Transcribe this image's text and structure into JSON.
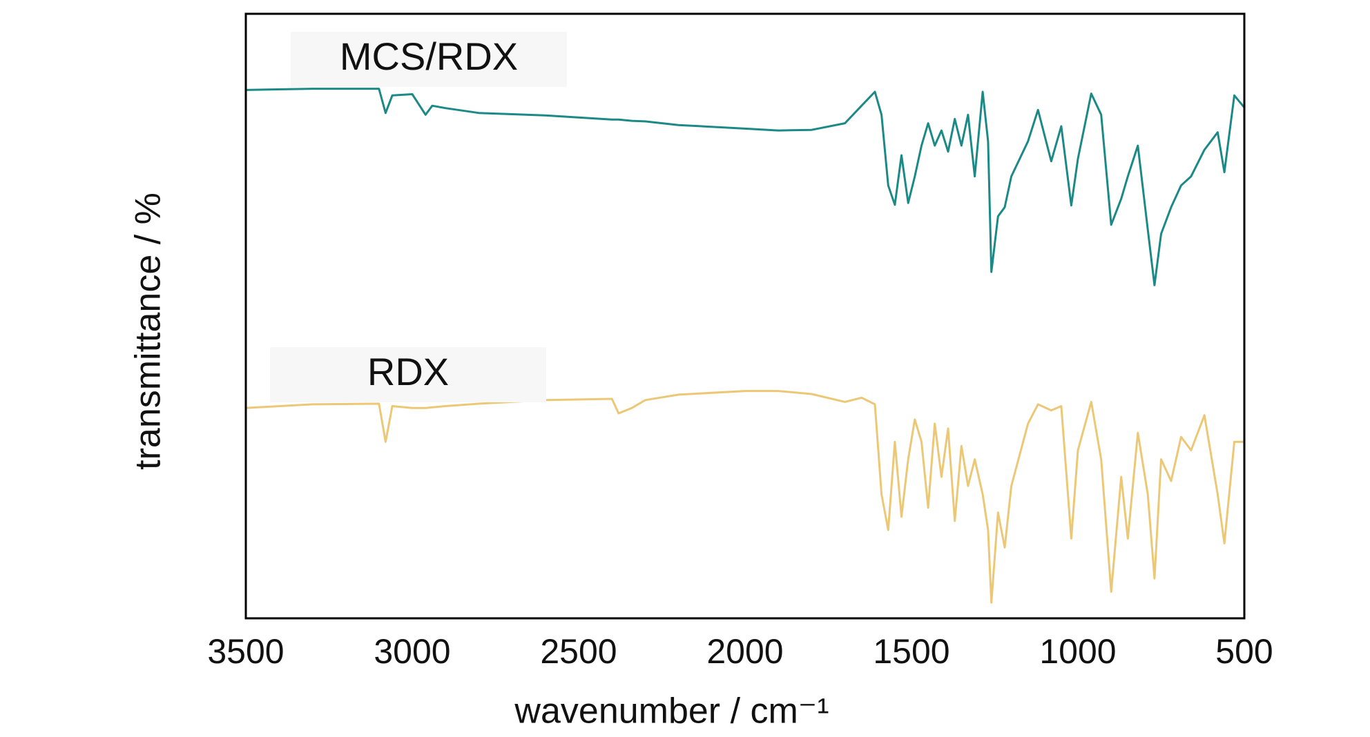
{
  "chart_data": {
    "type": "line",
    "xlabel": "wavenumber / cm⁻¹",
    "ylabel": "transmittance / %",
    "x": [
      3500,
      3300,
      3100,
      3080,
      3060,
      3000,
      2960,
      2940,
      2900,
      2800,
      2600,
      2400,
      2380,
      2340,
      2300,
      2200,
      2000,
      1900,
      1800,
      1700,
      1650,
      1610,
      1590,
      1570,
      1550,
      1530,
      1510,
      1490,
      1470,
      1450,
      1430,
      1410,
      1390,
      1370,
      1350,
      1330,
      1310,
      1286,
      1270,
      1260,
      1240,
      1220,
      1200,
      1150,
      1120,
      1080,
      1050,
      1020,
      1000,
      960,
      930,
      900,
      870,
      850,
      820,
      790,
      770,
      750,
      720,
      690,
      660,
      620,
      580,
      560,
      530,
      500
    ],
    "series": [
      {
        "name": "MCS/RDX",
        "color": "#1b8a86",
        "values": [
          87.4,
          87.6,
          87.6,
          83.6,
          86.5,
          86.7,
          83.3,
          84.8,
          84.4,
          83.6,
          83.2,
          82.5,
          82.5,
          82.3,
          82.2,
          81.6,
          81.0,
          80.7,
          80.8,
          81.9,
          84.8,
          87.1,
          83.3,
          71.6,
          68.4,
          76.6,
          68.7,
          73.1,
          78.2,
          81.9,
          78.2,
          80.7,
          77.2,
          82.6,
          78.2,
          83.3,
          73.1,
          87.1,
          78.9,
          57.3,
          66.5,
          68.0,
          73.1,
          78.9,
          84.1,
          75.6,
          81.4,
          68.3,
          76.0,
          86.8,
          83.3,
          65.1,
          69.4,
          73.1,
          78.2,
          64.3,
          55.1,
          63.6,
          68.0,
          71.6,
          73.1,
          77.5,
          80.4,
          73.8,
          86.5,
          84.5
        ]
      },
      {
        "name": "RDX",
        "color": "#ecc876",
        "values": [
          34.8,
          35.4,
          35.5,
          29.2,
          35.1,
          34.8,
          34.8,
          34.9,
          35.1,
          35.5,
          36.1,
          36.3,
          33.9,
          34.8,
          36.1,
          37.0,
          37.6,
          37.6,
          37.1,
          35.8,
          36.5,
          35.4,
          20.5,
          14.6,
          29.2,
          16.8,
          26.3,
          32.9,
          29.2,
          18.3,
          32.2,
          23.4,
          31.4,
          16.1,
          28.5,
          21.9,
          26.3,
          20.5,
          14.6,
          2.6,
          17.5,
          11.7,
          21.9,
          32.2,
          35.4,
          34.4,
          35.1,
          13.2,
          27.8,
          35.8,
          26.3,
          4.4,
          23.4,
          13.2,
          30.7,
          20.5,
          6.6,
          26.3,
          22.7,
          30.0,
          27.8,
          33.6,
          20.5,
          12.4,
          29.2,
          29.2
        ]
      }
    ],
    "xlim": [
      3500,
      500
    ],
    "xticks": [
      3500,
      3000,
      2500,
      2000,
      1500,
      1000,
      500
    ],
    "ylim": [
      0,
      100
    ],
    "grid": false
  }
}
